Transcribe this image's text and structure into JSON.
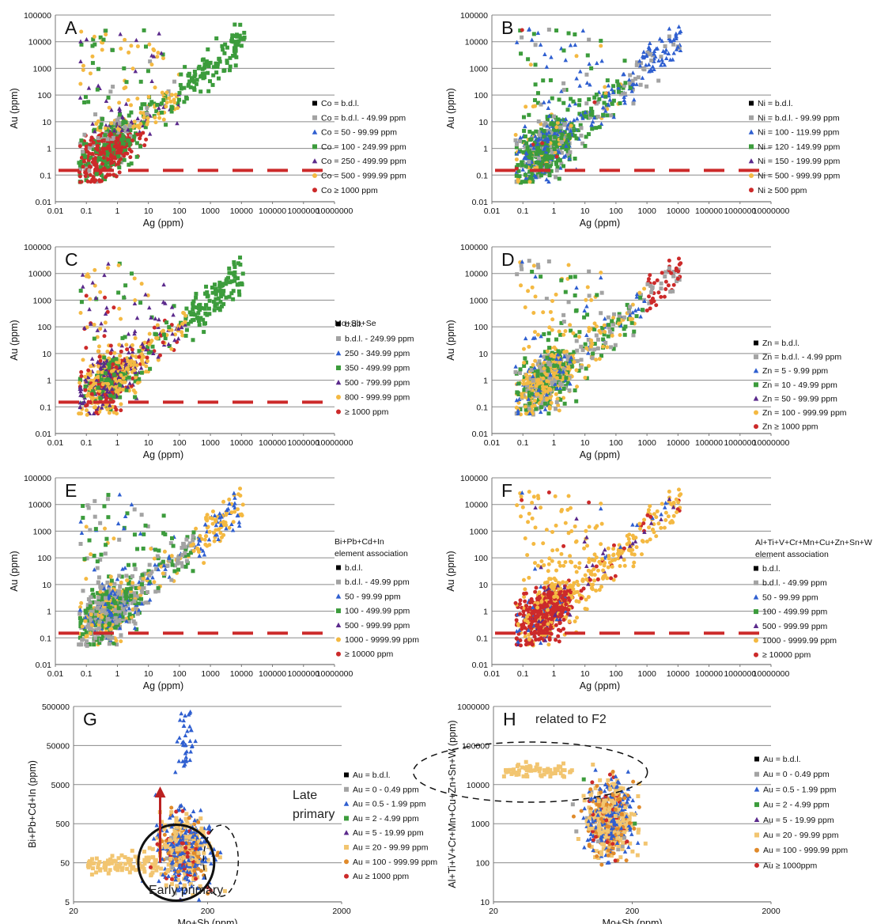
{
  "colors": {
    "black": "#000000",
    "gray": "#a3a3a3",
    "blue": "#2f5fd0",
    "green": "#3c9c3c",
    "purple": "#5b2a8c",
    "yellow": "#f4b942",
    "red": "#cc2a2a",
    "orange": "#f0b060",
    "tan": "#f2c570",
    "dkorange": "#e08a2a",
    "threshold": "#cc2a2a"
  },
  "chart_data": [
    {
      "panel": "A",
      "type": "scatter",
      "xlabel": "Ag (ppm)",
      "ylabel": "Au (ppm)",
      "x_scale": "log",
      "y_scale": "log",
      "xlim": [
        0.01,
        10000000
      ],
      "ylim": [
        0.01,
        100000
      ],
      "x_ticks": [
        "0.01",
        "0.1",
        "1",
        "10",
        "100",
        "1000",
        "10000",
        "100000",
        "1000000",
        "10000000"
      ],
      "y_ticks": [
        "0.01",
        "0.1",
        "1",
        "10",
        "100",
        "1000",
        "10000",
        "100000"
      ],
      "legend_title": "",
      "threshold_au": 0.15,
      "legend": [
        {
          "label": "Co = b.d.l.",
          "color": "black",
          "shape": "square"
        },
        {
          "label": "Co = b.d.l. - 49.99 ppm",
          "color": "gray",
          "shape": "square"
        },
        {
          "label": "Co = 50 - 99.99 ppm",
          "color": "blue",
          "shape": "triangle"
        },
        {
          "label": "Co = 100 - 249.99 ppm",
          "color": "green",
          "shape": "square"
        },
        {
          "label": "Co = 250 - 499.99 ppm",
          "color": "purple",
          "shape": "triangle"
        },
        {
          "label": "Co = 500 - 999.99 ppm",
          "color": "yellow",
          "shape": "circle"
        },
        {
          "label": "Co ≥ 1000 ppm",
          "color": "red",
          "shape": "circle"
        }
      ]
    },
    {
      "panel": "B",
      "type": "scatter",
      "xlabel": "Ag (ppm)",
      "ylabel": "Au (ppm)",
      "x_scale": "log",
      "y_scale": "log",
      "xlim": [
        0.01,
        10000000
      ],
      "ylim": [
        0.01,
        100000
      ],
      "x_ticks": [
        "0.01",
        "0.1",
        "1",
        "10",
        "100",
        "1000",
        "10000",
        "100000",
        "1000000",
        "10000000"
      ],
      "y_ticks": [
        "0.01",
        "0.1",
        "1",
        "10",
        "100",
        "1000",
        "10000",
        "100000"
      ],
      "legend_title": "",
      "threshold_au": 0.15,
      "legend": [
        {
          "label": "Ni = b.d.l.",
          "color": "black",
          "shape": "square"
        },
        {
          "label": "Ni = b.d.l. - 99.99 ppm",
          "color": "gray",
          "shape": "square"
        },
        {
          "label": "Ni = 100 - 119.99 ppm",
          "color": "blue",
          "shape": "triangle"
        },
        {
          "label": "Ni = 120 - 149.99 ppm",
          "color": "green",
          "shape": "square"
        },
        {
          "label": "Ni = 150 - 199.99 ppm",
          "color": "purple",
          "shape": "triangle"
        },
        {
          "label": "Ni = 500 - 999.99 ppm",
          "color": "yellow",
          "shape": "circle"
        },
        {
          "label": "Ni ≥ 500 ppm",
          "color": "red",
          "shape": "circle"
        }
      ]
    },
    {
      "panel": "C",
      "type": "scatter",
      "xlabel": "Ag (ppm)",
      "ylabel": "Au (ppm)",
      "x_scale": "log",
      "y_scale": "log",
      "xlim": [
        0.01,
        10000000
      ],
      "ylim": [
        0.01,
        100000
      ],
      "x_ticks": [
        "0.01",
        "0.1",
        "1",
        "10",
        "100",
        "1000",
        "10000",
        "100000",
        "1000000",
        "10000000"
      ],
      "y_ticks": [
        "0.01",
        "0.1",
        "1",
        "10",
        "100",
        "1000",
        "10000",
        "100000"
      ],
      "legend_title": "Mo+Sb+Se",
      "threshold_au": 0.15,
      "legend": [
        {
          "label": "b.d.l.",
          "color": "black",
          "shape": "square"
        },
        {
          "label": "b.d.l. - 249.99 ppm",
          "color": "gray",
          "shape": "square"
        },
        {
          "label": "250 - 349.99 ppm",
          "color": "blue",
          "shape": "triangle"
        },
        {
          "label": "350 - 499.99 ppm",
          "color": "green",
          "shape": "square"
        },
        {
          "label": "500 - 799.99 ppm",
          "color": "purple",
          "shape": "triangle"
        },
        {
          "label": "800 - 999.99 ppm",
          "color": "yellow",
          "shape": "circle"
        },
        {
          "label": "≥ 1000 ppm",
          "color": "red",
          "shape": "circle"
        }
      ]
    },
    {
      "panel": "D",
      "type": "scatter",
      "xlabel": "Ag (ppm)",
      "ylabel": "Au (ppm)",
      "x_scale": "log",
      "y_scale": "log",
      "xlim": [
        0.01,
        10000000
      ],
      "ylim": [
        0.01,
        100000
      ],
      "x_ticks": [
        "0.01",
        "0.1",
        "1",
        "10",
        "100",
        "1000",
        "10000",
        "100000",
        "1000000",
        "10000000"
      ],
      "y_ticks": [
        "0.01",
        "0.1",
        "1",
        "10",
        "100",
        "1000",
        "10000",
        "100000"
      ],
      "legend_title": "",
      "threshold_au": null,
      "legend": [
        {
          "label": "Zn = b.d.l.",
          "color": "black",
          "shape": "square"
        },
        {
          "label": "Zn = b.d.l. - 4.99 ppm",
          "color": "gray",
          "shape": "square"
        },
        {
          "label": "Zn = 5 - 9.99 ppm",
          "color": "blue",
          "shape": "triangle"
        },
        {
          "label": "Zn = 10 - 49.99 ppm",
          "color": "green",
          "shape": "square"
        },
        {
          "label": "Zn = 50 - 99.99 ppm",
          "color": "purple",
          "shape": "triangle"
        },
        {
          "label": "Zn = 100 - 999.99 ppm",
          "color": "yellow",
          "shape": "circle"
        },
        {
          "label": "Zn ≥ 1000 ppm",
          "color": "red",
          "shape": "circle"
        }
      ]
    },
    {
      "panel": "E",
      "type": "scatter",
      "xlabel": "Ag (ppm)",
      "ylabel": "Au (ppm)",
      "x_scale": "log",
      "y_scale": "log",
      "xlim": [
        0.01,
        10000000
      ],
      "ylim": [
        0.01,
        100000
      ],
      "x_ticks": [
        "0.01",
        "0.1",
        "1",
        "10",
        "100",
        "1000",
        "10000",
        "100000",
        "1000000",
        "10000000"
      ],
      "y_ticks": [
        "0.01",
        "0.1",
        "1",
        "10",
        "100",
        "1000",
        "10000",
        "100000"
      ],
      "legend_title": "Bi+Pb+Cd+In element association",
      "threshold_au": 0.15,
      "legend": [
        {
          "label": "b.d.l.",
          "color": "black",
          "shape": "square"
        },
        {
          "label": "b.d.l. - 49.99 ppm",
          "color": "gray",
          "shape": "square"
        },
        {
          "label": "50 - 99.99 ppm",
          "color": "blue",
          "shape": "triangle"
        },
        {
          "label": "100 - 499.99 ppm",
          "color": "green",
          "shape": "square"
        },
        {
          "label": "500 - 999.99 ppm",
          "color": "purple",
          "shape": "triangle"
        },
        {
          "label": "1000 - 9999.99 ppm",
          "color": "yellow",
          "shape": "circle"
        },
        {
          "label": "≥ 10000 ppm",
          "color": "red",
          "shape": "circle"
        }
      ]
    },
    {
      "panel": "F",
      "type": "scatter",
      "xlabel": "Ag (ppm)",
      "ylabel": "Au (ppm)",
      "x_scale": "log",
      "y_scale": "log",
      "xlim": [
        0.01,
        10000000
      ],
      "ylim": [
        0.01,
        100000
      ],
      "x_ticks": [
        "0.01",
        "0.1",
        "1",
        "10",
        "100",
        "1000",
        "10000",
        "100000",
        "1000000",
        "10000000"
      ],
      "y_ticks": [
        "0.01",
        "0.1",
        "1",
        "10",
        "100",
        "1000",
        "10000",
        "100000"
      ],
      "legend_title": "Al+Ti+V+Cr+Mn+Cu+Zn+Sn+W element association",
      "threshold_au": 0.15,
      "legend": [
        {
          "label": "b.d.l.",
          "color": "black",
          "shape": "square"
        },
        {
          "label": "b.d.l. - 49.99 ppm",
          "color": "gray",
          "shape": "square"
        },
        {
          "label": "50 - 99.99 ppm",
          "color": "blue",
          "shape": "triangle"
        },
        {
          "label": "100 - 499.99 ppm",
          "color": "green",
          "shape": "square"
        },
        {
          "label": "500 - 999.99 ppm",
          "color": "purple",
          "shape": "triangle"
        },
        {
          "label": "1000 - 9999.99 ppm",
          "color": "yellow",
          "shape": "circle"
        },
        {
          "label": "≥ 10000 ppm",
          "color": "red",
          "shape": "circle"
        }
      ]
    },
    {
      "panel": "G",
      "type": "scatter",
      "xlabel": "Mo+Sb (ppm)",
      "ylabel": "Bi+Pb+Cd+In (ppm)",
      "x_scale": "log",
      "y_scale": "log",
      "xlim": [
        20,
        20000
      ],
      "ylim": [
        5,
        500000
      ],
      "x_ticks": [
        "20",
        "200",
        "2000"
      ],
      "y_ticks": [
        "5",
        "50",
        "500",
        "5000",
        "50000",
        "500000"
      ],
      "legend_title": "",
      "annotations": [
        "Late primary",
        "Early primary"
      ],
      "legend": [
        {
          "label": "Au = b.d.l.",
          "color": "black",
          "shape": "square"
        },
        {
          "label": "Au = 0 - 0.49 ppm",
          "color": "gray",
          "shape": "square"
        },
        {
          "label": "Au = 0.5 - 1.99 ppm",
          "color": "blue",
          "shape": "triangle"
        },
        {
          "label": "Au = 2 - 4.99 ppm",
          "color": "green",
          "shape": "square"
        },
        {
          "label": "Au = 5 - 19.99 ppm",
          "color": "purple",
          "shape": "triangle"
        },
        {
          "label": "Au = 20 - 99.99 ppm",
          "color": "tan",
          "shape": "square"
        },
        {
          "label": "Au = 100 - 999.99 ppm",
          "color": "dkorange",
          "shape": "circle"
        },
        {
          "label": "Au ≥ 1000 ppm",
          "color": "red",
          "shape": "circle"
        }
      ]
    },
    {
      "panel": "H",
      "type": "scatter",
      "xlabel": "Mo+Sb (ppm)",
      "ylabel": "Al+Ti+V+Cr+Mn+Cu+Zn+Sn+W (ppm)",
      "x_scale": "log",
      "y_scale": "log",
      "xlim": [
        20,
        20000
      ],
      "ylim": [
        10,
        1000000
      ],
      "x_ticks": [
        "20",
        "200",
        "2000"
      ],
      "y_ticks": [
        "10",
        "100",
        "1000",
        "10000",
        "100000",
        "1000000"
      ],
      "legend_title": "",
      "annotations": [
        "related to F2"
      ],
      "legend": [
        {
          "label": "Au = b.d.l.",
          "color": "black",
          "shape": "square"
        },
        {
          "label": "Au = 0 - 0.49 ppm",
          "color": "gray",
          "shape": "square"
        },
        {
          "label": "Au = 0.5 - 1.99 ppm",
          "color": "blue",
          "shape": "triangle"
        },
        {
          "label": "Au = 2 - 4.99 ppm",
          "color": "green",
          "shape": "square"
        },
        {
          "label": "Au = 5 - 19.99 ppm",
          "color": "purple",
          "shape": "triangle"
        },
        {
          "label": "Au = 20 - 99.99 ppm",
          "color": "tan",
          "shape": "square"
        },
        {
          "label": "Au = 100 - 999.99 ppm",
          "color": "dkorange",
          "shape": "circle"
        },
        {
          "label": "Au ≥ 1000ppm",
          "color": "red",
          "shape": "circle"
        }
      ]
    }
  ]
}
